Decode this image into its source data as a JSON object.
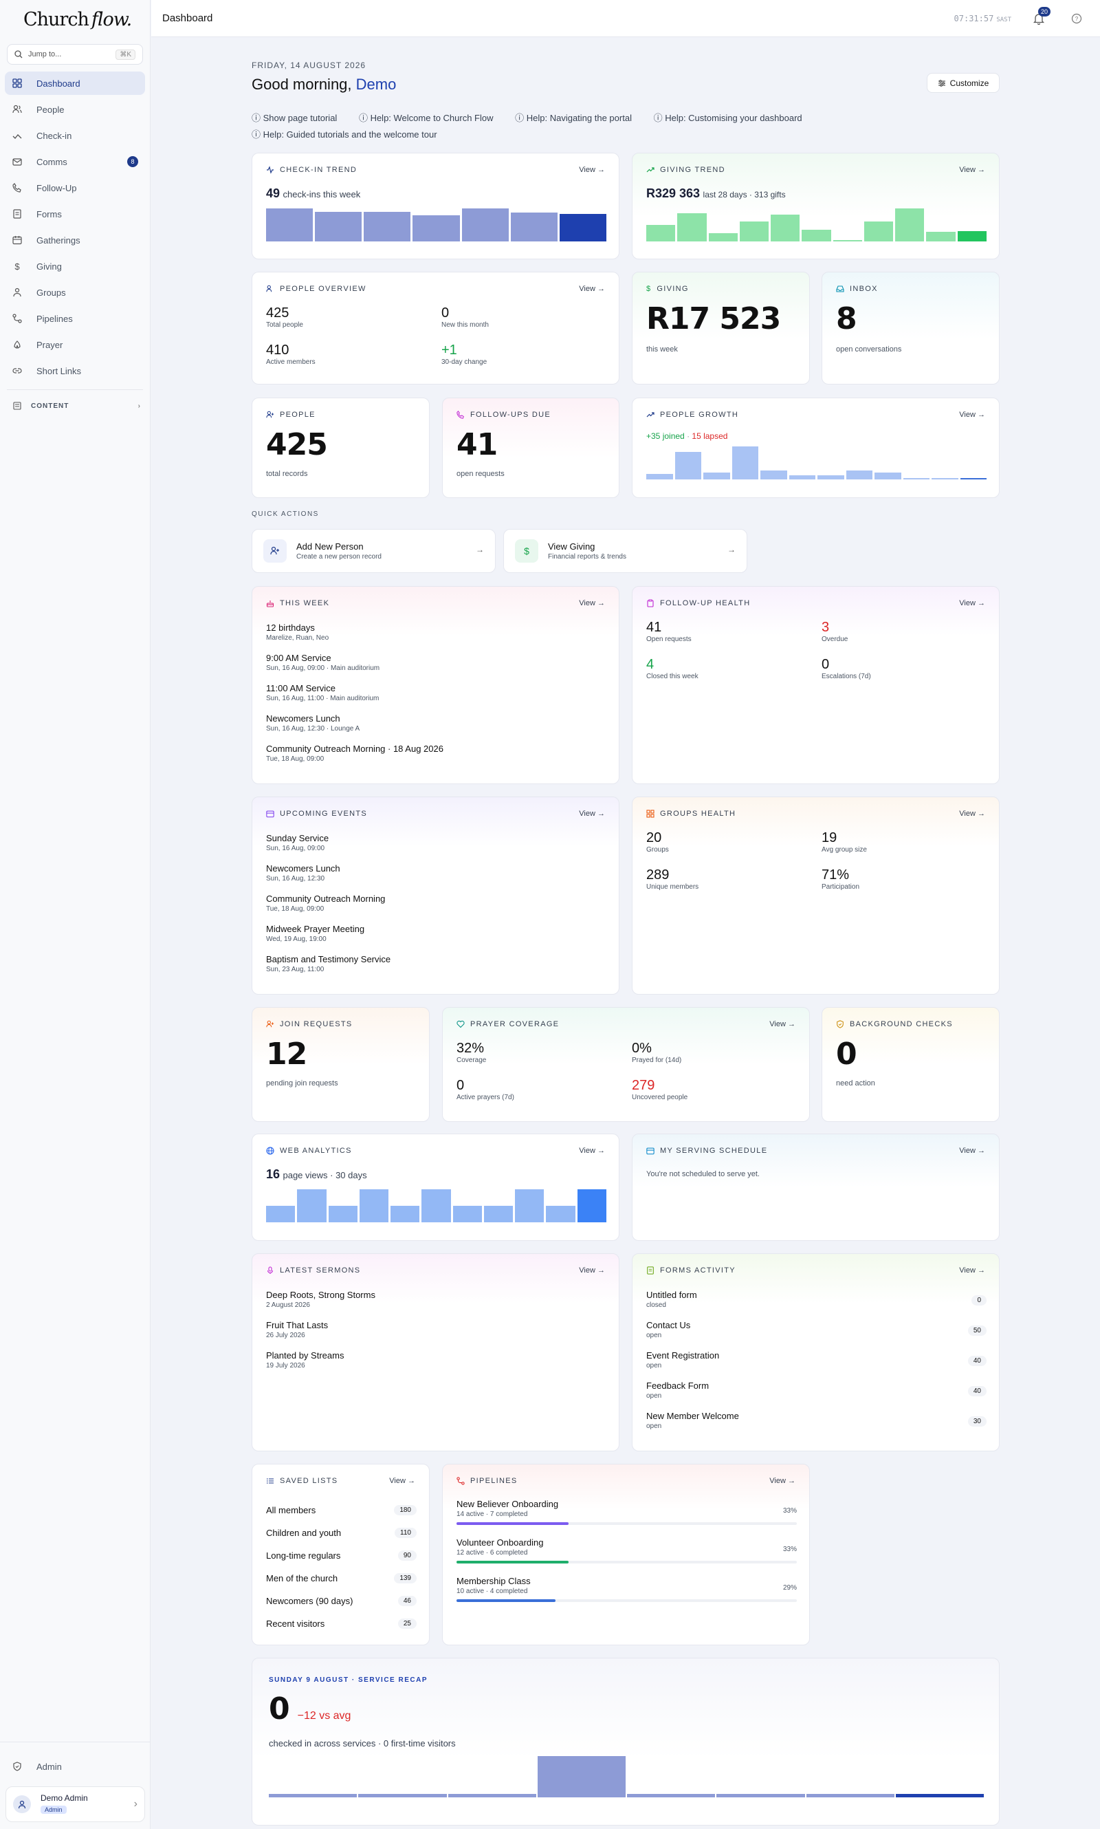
{
  "sidebar": {
    "logo_main": "Church",
    "logo_script": "flow.",
    "jump_placeholder": "Jump to...",
    "jump_shortcut": "⌘K",
    "items": [
      {
        "label": "Dashboard",
        "icon": "grid-icon"
      },
      {
        "label": "People",
        "icon": "users-icon"
      },
      {
        "label": "Check-in",
        "icon": "check-icon"
      },
      {
        "label": "Comms",
        "icon": "mail-icon",
        "badge": "8"
      },
      {
        "label": "Follow-Up",
        "icon": "phone-icon"
      },
      {
        "label": "Forms",
        "icon": "form-icon"
      },
      {
        "label": "Gatherings",
        "icon": "calendar-icon"
      },
      {
        "label": "Giving",
        "icon": "dollar-icon"
      },
      {
        "label": "Groups",
        "icon": "groups-icon"
      },
      {
        "label": "Pipelines",
        "icon": "pipeline-icon"
      },
      {
        "label": "Prayer",
        "icon": "prayer-icon"
      },
      {
        "label": "Short Links",
        "icon": "link-icon"
      }
    ],
    "section_content": "CONTENT",
    "admin_label": "Admin",
    "user_name": "Demo Admin",
    "user_role": "Admin"
  },
  "topbar": {
    "title": "Dashboard",
    "clock": "07:31:57",
    "tz": "SAST",
    "notif_count": "20"
  },
  "header": {
    "date": "FRIDAY, 14 AUGUST 2026",
    "greeting": "Good morning,",
    "name": "Demo",
    "customize": "Customize",
    "help_links": [
      "Show page tutorial",
      "Help: Welcome to Church Flow",
      "Help: Navigating the portal",
      "Help: Customising your dashboard",
      "Help: Guided tutorials and the welcome tour"
    ]
  },
  "view_label": "View",
  "checkin_trend": {
    "title": "CHECK-IN TREND",
    "value": "49",
    "label": "check-ins this week",
    "values": [
      30,
      27,
      27,
      24,
      30,
      26,
      25
    ]
  },
  "giving_trend": {
    "title": "GIVING TREND",
    "value": "R329 363",
    "label": "last 28 days · 313 gifts",
    "values": [
      14,
      24,
      7,
      17,
      23,
      10,
      1,
      17,
      28,
      8,
      9
    ]
  },
  "people_overview": {
    "title": "PEOPLE OVERVIEW",
    "total": "425",
    "total_label": "Total people",
    "new": "0",
    "new_label": "New this month",
    "active": "410",
    "active_label": "Active members",
    "change": "+1",
    "change_label": "30-day change"
  },
  "giving": {
    "title": "GIVING",
    "value": "R17 523",
    "label": "this week"
  },
  "inbox": {
    "title": "INBOX",
    "value": "8",
    "label": "open conversations"
  },
  "people": {
    "title": "PEOPLE",
    "value": "425",
    "label": "total records"
  },
  "followups_due": {
    "title": "FOLLOW-UPS DUE",
    "value": "41",
    "label": "open requests"
  },
  "people_growth": {
    "title": "PEOPLE GROWTH",
    "joined": "+35 joined",
    "lapsed": "15 lapsed",
    "values": [
      4,
      19,
      5,
      23,
      6,
      3,
      3,
      6,
      5,
      1,
      1,
      1
    ]
  },
  "quick_actions": {
    "title": "QUICK ACTIONS",
    "items": [
      {
        "title": "Add New Person",
        "sub": "Create a new person record"
      },
      {
        "title": "View Giving",
        "sub": "Financial reports & trends"
      }
    ]
  },
  "this_week": {
    "title": "THIS WEEK",
    "items": [
      {
        "title": "12 birthdays",
        "sub": "Marelize, Ruan, Neo"
      },
      {
        "title": "9:00 AM Service",
        "sub": "Sun, 16 Aug, 09:00 · Main auditorium"
      },
      {
        "title": "11:00 AM Service",
        "sub": "Sun, 16 Aug, 11:00 · Main auditorium"
      },
      {
        "title": "Newcomers Lunch",
        "sub": "Sun, 16 Aug, 12:30 · Lounge A"
      },
      {
        "title": "Community Outreach Morning · 18 Aug 2026",
        "sub": "Tue, 18 Aug, 09:00"
      }
    ]
  },
  "followup_health": {
    "title": "FOLLOW-UP HEALTH",
    "open": "41",
    "open_label": "Open requests",
    "overdue": "3",
    "overdue_label": "Overdue",
    "closed": "4",
    "closed_label": "Closed this week",
    "escalations": "0",
    "escalations_label": "Escalations (7d)"
  },
  "upcoming_events": {
    "title": "UPCOMING EVENTS",
    "items": [
      {
        "title": "Sunday Service",
        "sub": "Sun, 16 Aug, 09:00"
      },
      {
        "title": "Newcomers Lunch",
        "sub": "Sun, 16 Aug, 12:30"
      },
      {
        "title": "Community Outreach Morning",
        "sub": "Tue, 18 Aug, 09:00"
      },
      {
        "title": "Midweek Prayer Meeting",
        "sub": "Wed, 19 Aug, 19:00"
      },
      {
        "title": "Baptism and Testimony Service",
        "sub": "Sun, 23 Aug, 11:00"
      }
    ]
  },
  "groups_health": {
    "title": "GROUPS HEALTH",
    "groups": "20",
    "groups_label": "Groups",
    "avg": "19",
    "avg_label": "Avg group size",
    "unique": "289",
    "unique_label": "Unique members",
    "participation": "71%",
    "participation_label": "Participation"
  },
  "join_requests": {
    "title": "JOIN REQUESTS",
    "value": "12",
    "label": "pending join requests"
  },
  "prayer_coverage": {
    "title": "PRAYER COVERAGE",
    "coverage": "32%",
    "coverage_label": "Coverage",
    "prayed": "0%",
    "prayed_label": "Prayed for (14d)",
    "active": "0",
    "active_label": "Active prayers (7d)",
    "uncovered": "279",
    "uncovered_label": "Uncovered people"
  },
  "background_checks": {
    "title": "BACKGROUND CHECKS",
    "value": "0",
    "label": "need action"
  },
  "web_analytics": {
    "title": "WEB ANALYTICS",
    "value": "16",
    "label": "page views · 30 days",
    "values": [
      1,
      2,
      1,
      2,
      1,
      2,
      1,
      1,
      2,
      1,
      2
    ]
  },
  "serving": {
    "title": "MY SERVING SCHEDULE",
    "text": "You're not scheduled to serve yet."
  },
  "sermons": {
    "title": "LATEST SERMONS",
    "items": [
      {
        "title": "Deep Roots, Strong Storms",
        "sub": "2 August 2026"
      },
      {
        "title": "Fruit That Lasts",
        "sub": "26 July 2026"
      },
      {
        "title": "Planted by Streams",
        "sub": "19 July 2026"
      }
    ]
  },
  "forms_activity": {
    "title": "FORMS ACTIVITY",
    "items": [
      {
        "title": "Untitled form",
        "sub": "closed",
        "count": "0"
      },
      {
        "title": "Contact Us",
        "sub": "open",
        "count": "50"
      },
      {
        "title": "Event Registration",
        "sub": "open",
        "count": "40"
      },
      {
        "title": "Feedback Form",
        "sub": "open",
        "count": "40"
      },
      {
        "title": "New Member Welcome",
        "sub": "open",
        "count": "30"
      }
    ]
  },
  "saved_lists": {
    "title": "SAVED LISTS",
    "items": [
      {
        "title": "All members",
        "count": "180"
      },
      {
        "title": "Children and youth",
        "count": "110"
      },
      {
        "title": "Long-time regulars",
        "count": "90"
      },
      {
        "title": "Men of the church",
        "count": "139"
      },
      {
        "title": "Newcomers (90 days)",
        "count": "46"
      },
      {
        "title": "Recent visitors",
        "count": "25"
      }
    ]
  },
  "pipelines": {
    "title": "PIPELINES",
    "items": [
      {
        "title": "New Believer Onboarding",
        "sub": "14 active · 7 completed",
        "pct": "33%",
        "fraction": 0.33,
        "color": "#7c5cf0"
      },
      {
        "title": "Volunteer Onboarding",
        "sub": "12 active · 6 completed",
        "pct": "33%",
        "fraction": 0.33,
        "color": "#1fae6b"
      },
      {
        "title": "Membership Class",
        "sub": "10 active · 4 completed",
        "pct": "29%",
        "fraction": 0.29,
        "color": "#3a6fd8"
      }
    ]
  },
  "recap": {
    "title": "SUNDAY 9 AUGUST · SERVICE RECAP",
    "value": "0",
    "delta": "−12 vs avg",
    "label": "checked in across services · 0 first-time visitors",
    "values": [
      1,
      1,
      1,
      12,
      1,
      1,
      1,
      1
    ]
  },
  "colors": {
    "accent": "#1e3a8a",
    "green": "#22c55e",
    "red": "#dc2626",
    "bar_blue": "#8d9bd6"
  }
}
